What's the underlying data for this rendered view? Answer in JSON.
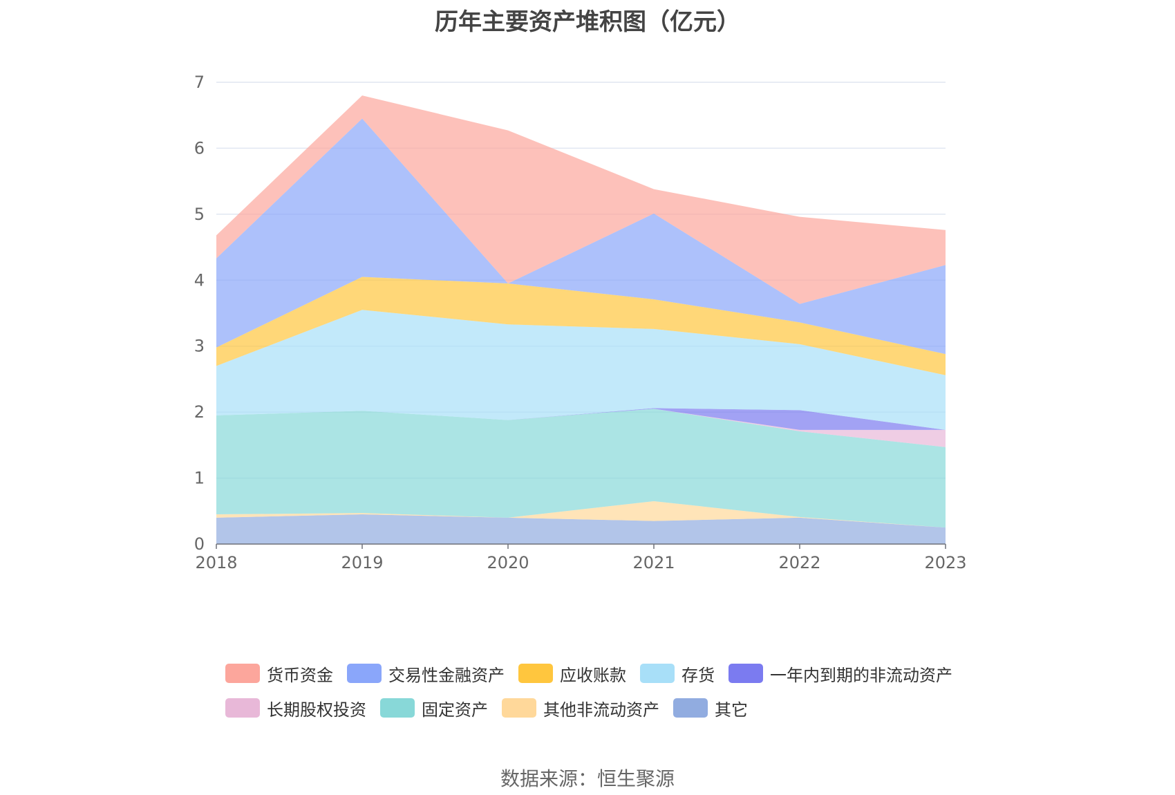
{
  "chart_data": {
    "type": "area",
    "stacked": true,
    "title": "历年主要资产堆积图（亿元）",
    "categories": [
      "2018",
      "2019",
      "2020",
      "2021",
      "2022",
      "2023"
    ],
    "ylim": [
      0,
      7
    ],
    "yticks": [
      0,
      1,
      2,
      3,
      4,
      5,
      6,
      7
    ],
    "grid": true,
    "legend_position": "bottom",
    "series": [
      {
        "name": "其它",
        "color": "#91ace0",
        "values": [
          0.4,
          0.45,
          0.4,
          0.35,
          0.4,
          0.25
        ]
      },
      {
        "name": "其他非流动资产",
        "color": "#ffd89a",
        "values": [
          0.05,
          0.02,
          0.0,
          0.3,
          0.01,
          0.0
        ]
      },
      {
        "name": "固定资产",
        "color": "#88d8d8",
        "values": [
          1.5,
          1.55,
          1.48,
          1.4,
          1.3,
          1.22
        ]
      },
      {
        "name": "长期股权投资",
        "color": "#e8b8d8",
        "values": [
          0.0,
          0.0,
          0.0,
          0.0,
          0.02,
          0.26
        ]
      },
      {
        "name": "一年内到期的非流动资产",
        "color": "#7b7bf0",
        "values": [
          0.0,
          0.0,
          0.0,
          0.01,
          0.3,
          0.0
        ]
      },
      {
        "name": "存货",
        "color": "#a8dff8",
        "values": [
          0.75,
          1.53,
          1.45,
          1.2,
          1.0,
          0.83
        ]
      },
      {
        "name": "应收账款",
        "color": "#ffc63e",
        "values": [
          0.28,
          0.5,
          0.62,
          0.45,
          0.33,
          0.32
        ]
      },
      {
        "name": "交易性金融资产",
        "color": "#8aa6fa",
        "values": [
          1.35,
          2.4,
          0.0,
          1.3,
          0.28,
          1.35
        ]
      },
      {
        "name": "货币资金",
        "color": "#fca69c",
        "values": [
          0.35,
          0.35,
          2.32,
          0.37,
          1.32,
          0.53
        ]
      }
    ],
    "legend_order": [
      "货币资金",
      "交易性金融资产",
      "应收账款",
      "存货",
      "一年内到期的非流动资产",
      "长期股权投资",
      "固定资产",
      "其他非流动资产",
      "其它"
    ]
  },
  "source_text": "数据来源：恒生聚源"
}
